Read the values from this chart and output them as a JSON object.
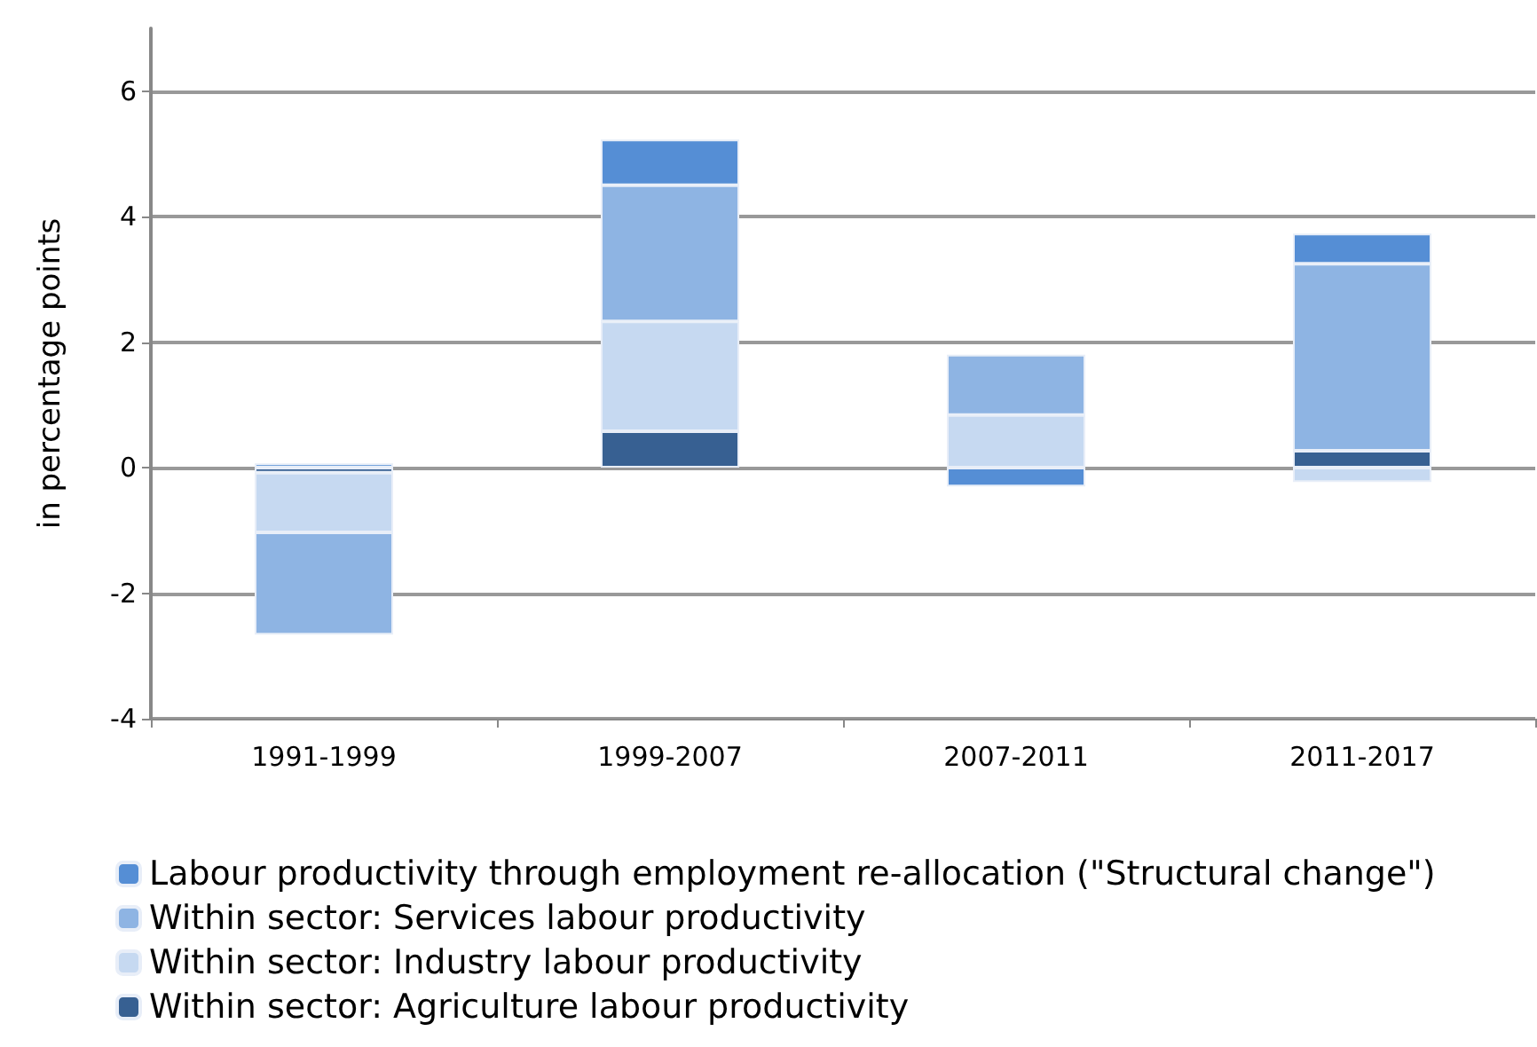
{
  "chart_data": {
    "type": "bar",
    "stacked": true,
    "ylabel": "in percentage points",
    "categories": [
      "1991-1999",
      "1999-2007",
      "2007-2011",
      "2011-2017"
    ],
    "series": [
      {
        "name": "Within sector: Agriculture labour productivity",
        "color": "#376092",
        "values": [
          -0.08,
          0.58,
          0,
          0.27
        ]
      },
      {
        "name": "Within sector: Industry labour productivity",
        "color": "#c6d9f1",
        "values": [
          -0.95,
          1.75,
          0.84,
          -0.23
        ]
      },
      {
        "name": "Within sector: Services labour productivity",
        "color": "#8eb4e3",
        "values": [
          -1.63,
          2.17,
          0.96,
          2.98
        ]
      },
      {
        "name": "Labour productivity through employment re-allocation (\"Structural change\")",
        "color": "#558ed5",
        "values": [
          0.07,
          0.73,
          -0.3,
          0.48
        ]
      }
    ],
    "ylim": [
      -4,
      7
    ],
    "yticks": [
      -4,
      -2,
      0,
      2,
      4,
      6
    ],
    "grid": "y",
    "legend": "bottom"
  }
}
